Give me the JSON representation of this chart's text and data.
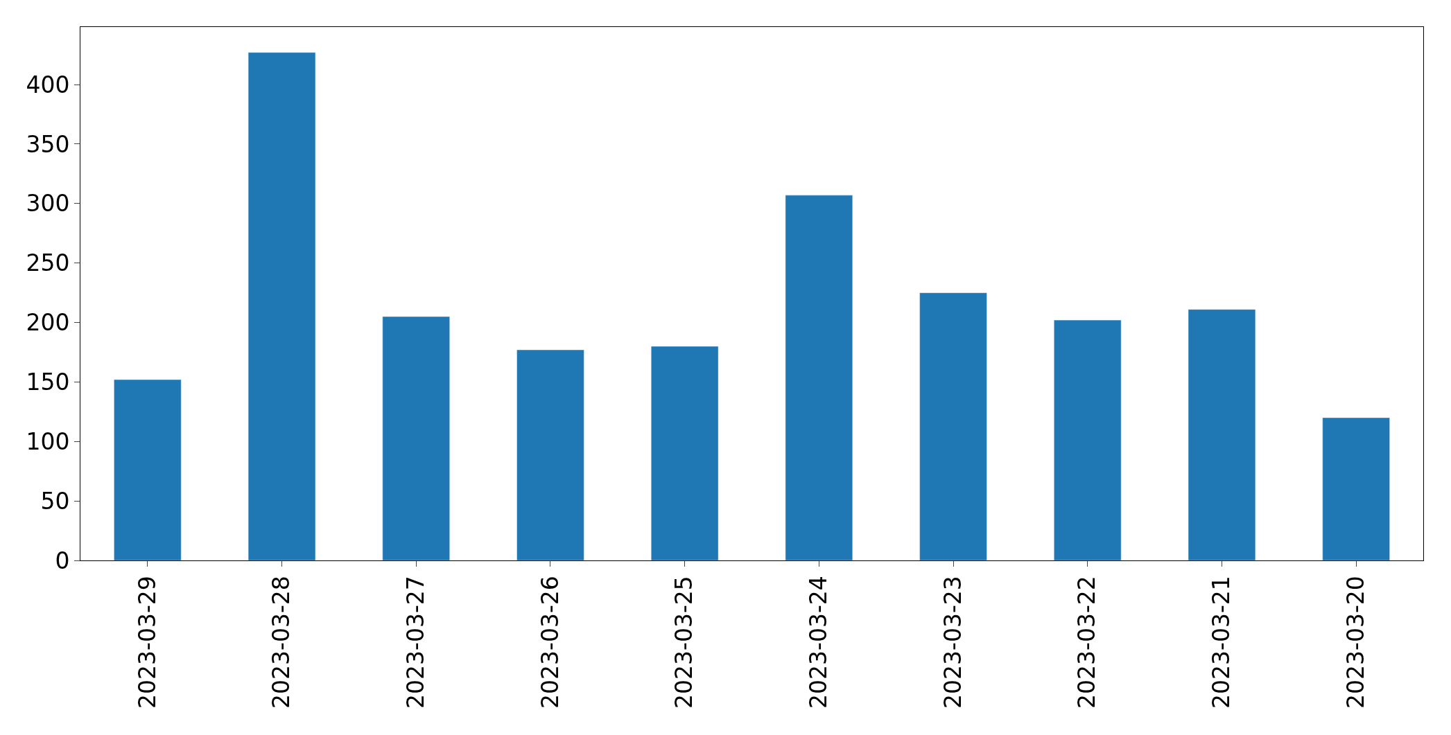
{
  "chart_data": {
    "type": "bar",
    "categories": [
      "2023-03-29",
      "2023-03-28",
      "2023-03-27",
      "2023-03-26",
      "2023-03-25",
      "2023-03-24",
      "2023-03-23",
      "2023-03-22",
      "2023-03-21",
      "2023-03-20"
    ],
    "values": [
      152,
      427,
      205,
      177,
      180,
      307,
      225,
      202,
      211,
      120
    ],
    "color": "#1f77b4",
    "ylim": [
      0,
      448.4
    ],
    "yticks": [
      0,
      50,
      100,
      150,
      200,
      250,
      300,
      350,
      400
    ],
    "legend": false
  }
}
